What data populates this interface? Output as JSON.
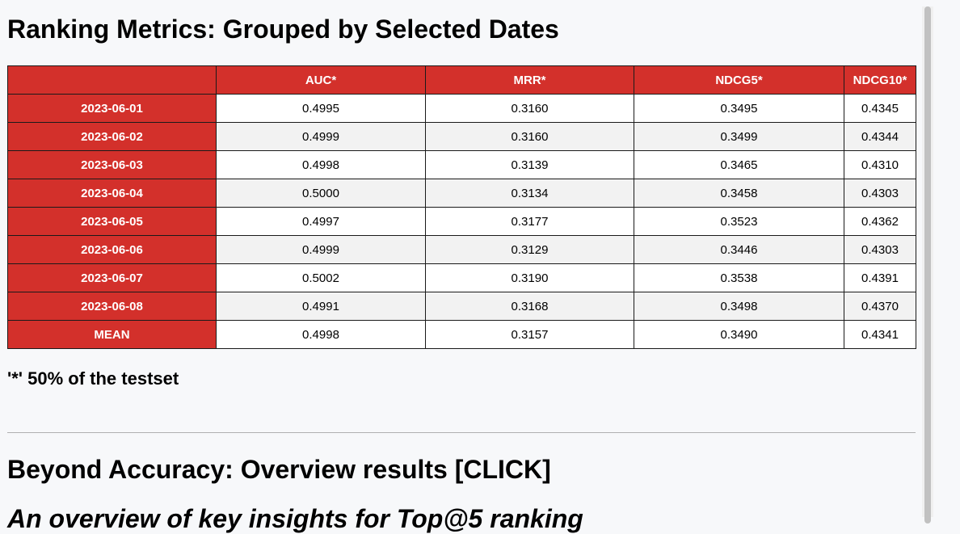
{
  "page": {
    "title": "Ranking Metrics: Grouped by Selected Dates",
    "footnote": "'*' 50% of the testset",
    "section_heading": "Beyond Accuracy: Overview results [CLICK]",
    "cutoff_heading": "An overview of key insights for Top@5 ranking"
  },
  "table": {
    "corner": "",
    "columns": [
      "AUC*",
      "MRR*",
      "NDCG5*",
      "NDCG10*"
    ],
    "rows": [
      {
        "label": "2023-06-01",
        "values": [
          "0.4995",
          "0.3160",
          "0.3495",
          "0.4345"
        ]
      },
      {
        "label": "2023-06-02",
        "values": [
          "0.4999",
          "0.3160",
          "0.3499",
          "0.4344"
        ]
      },
      {
        "label": "2023-06-03",
        "values": [
          "0.4998",
          "0.3139",
          "0.3465",
          "0.4310"
        ]
      },
      {
        "label": "2023-06-04",
        "values": [
          "0.5000",
          "0.3134",
          "0.3458",
          "0.4303"
        ]
      },
      {
        "label": "2023-06-05",
        "values": [
          "0.4997",
          "0.3177",
          "0.3523",
          "0.4362"
        ]
      },
      {
        "label": "2023-06-06",
        "values": [
          "0.4999",
          "0.3129",
          "0.3446",
          "0.4303"
        ]
      },
      {
        "label": "2023-06-07",
        "values": [
          "0.5002",
          "0.3190",
          "0.3538",
          "0.4391"
        ]
      },
      {
        "label": "2023-06-08",
        "values": [
          "0.4991",
          "0.3168",
          "0.3498",
          "0.4370"
        ]
      },
      {
        "label": "MEAN",
        "values": [
          "0.4998",
          "0.3157",
          "0.3490",
          "0.4341"
        ]
      }
    ]
  },
  "colors": {
    "header_red": "#d3302b",
    "row_odd": "#ffffff",
    "row_even": "#f2f2f2",
    "page_bg": "#f7f8fa"
  }
}
